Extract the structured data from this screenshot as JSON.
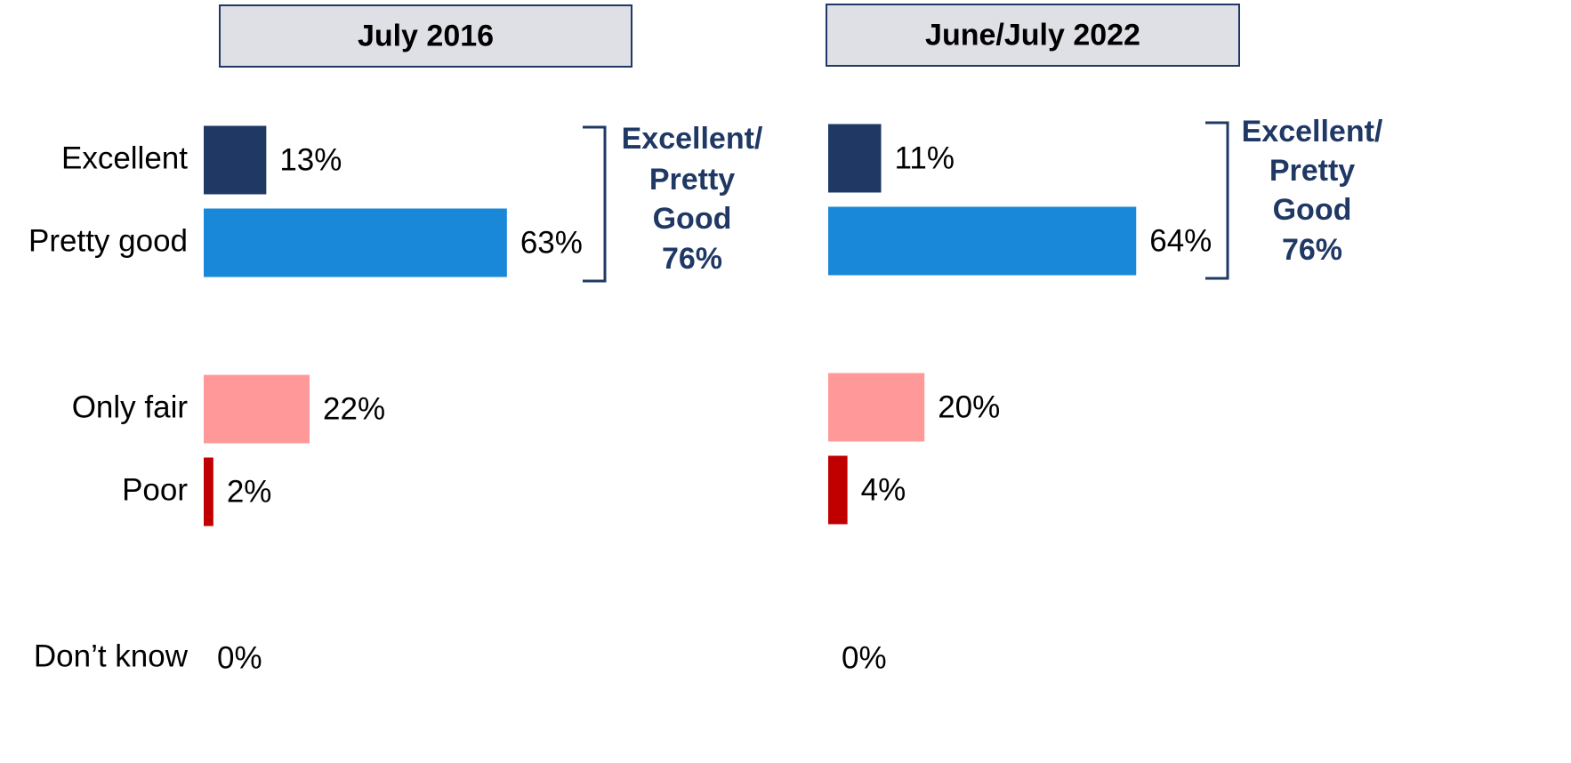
{
  "chart_data": [
    {
      "type": "bar",
      "orientation": "horizontal",
      "title": "July 2016",
      "categories": [
        "Excellent",
        "Pretty good",
        "Only fair",
        "Poor",
        "Don’t know"
      ],
      "values": [
        13,
        63,
        22,
        2,
        0
      ],
      "value_labels": [
        "13%",
        "63%",
        "22%",
        "2%",
        "0%"
      ],
      "colors": [
        "#1f3864",
        "#1a88d8",
        "#ff9999",
        "#c00000",
        null
      ],
      "bracket": {
        "label": [
          "Excellent/",
          "Pretty",
          "Good"
        ],
        "value": 76,
        "value_label": "76%"
      }
    },
    {
      "type": "bar",
      "orientation": "horizontal",
      "title": "June/July 2022",
      "categories": [
        null,
        null,
        null,
        null,
        null
      ],
      "values": [
        11,
        64,
        20,
        4,
        0
      ],
      "value_labels": [
        "11%",
        "64%",
        "20%",
        "4%",
        "0%"
      ],
      "colors": [
        "#1f3864",
        "#1a88d8",
        "#ff9999",
        "#c00000",
        null
      ],
      "bracket": {
        "label": [
          "Excellent/",
          "Pretty",
          "Good"
        ],
        "value": 76,
        "value_label": "76%"
      }
    }
  ]
}
